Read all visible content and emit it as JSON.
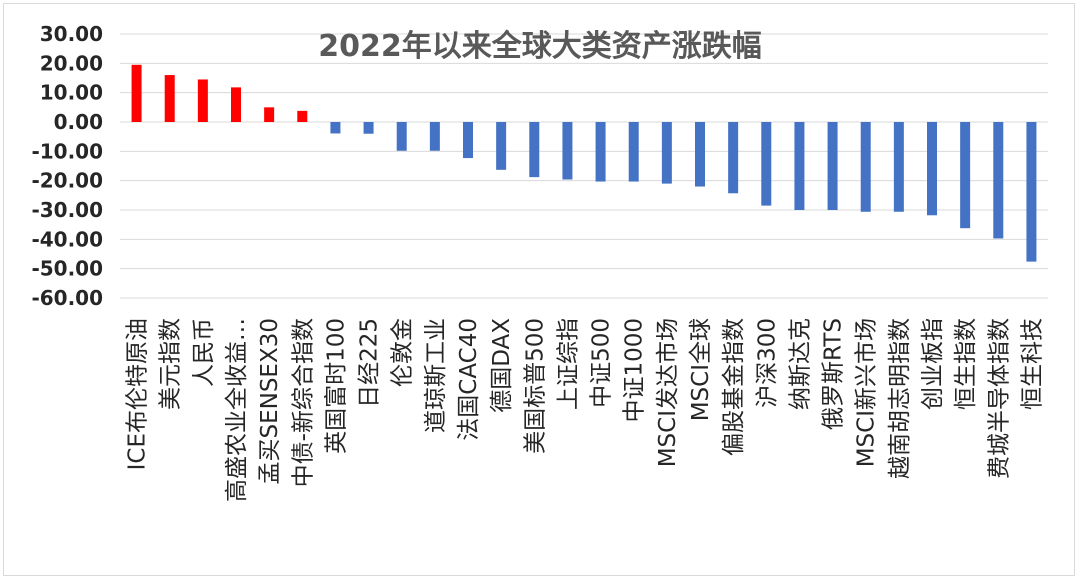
{
  "chart_data": {
    "type": "bar",
    "title": "2022年以来全球大类资产涨跌幅",
    "xlabel": "",
    "ylabel": "",
    "ylim": [
      -60,
      30
    ],
    "yticks": [
      "30.00",
      "20.00",
      "10.00",
      "0.00",
      "-10.00",
      "-20.00",
      "-30.00",
      "-40.00",
      "-50.00",
      "-60.00"
    ],
    "grid": true,
    "legend": "none",
    "colors": {
      "positive": "#ff0000",
      "negative": "#4472c4"
    },
    "categories": [
      "ICE布伦特原油",
      "美元指数",
      "人民币",
      "高盛农业全收益…",
      "孟买SENSEX30",
      "中债-新综合指数",
      "英国富时100",
      "日经225",
      "伦敦金",
      "道琼斯工业",
      "法国CAC40",
      "德国DAX",
      "美国标普500",
      "上证综指",
      "中证500",
      "中证1000",
      "MSCI发达市场",
      "MSCI全球",
      "偏股基金指数",
      "沪深300",
      "纳斯达克",
      "俄罗斯RTS",
      "MSCI新兴市场",
      "越南胡志明指数",
      "创业板指",
      "恒生指数",
      "费城半导体指数",
      "恒生科技"
    ],
    "values": [
      19.5,
      16.0,
      14.5,
      11.8,
      5.0,
      3.8,
      -3.9,
      -4.0,
      -9.8,
      -9.8,
      -12.3,
      -16.3,
      -18.8,
      -19.6,
      -20.3,
      -20.3,
      -21.0,
      -22.0,
      -24.3,
      -28.5,
      -30.0,
      -30.0,
      -30.6,
      -30.6,
      -31.8,
      -36.2,
      -39.7,
      -47.6
    ]
  }
}
